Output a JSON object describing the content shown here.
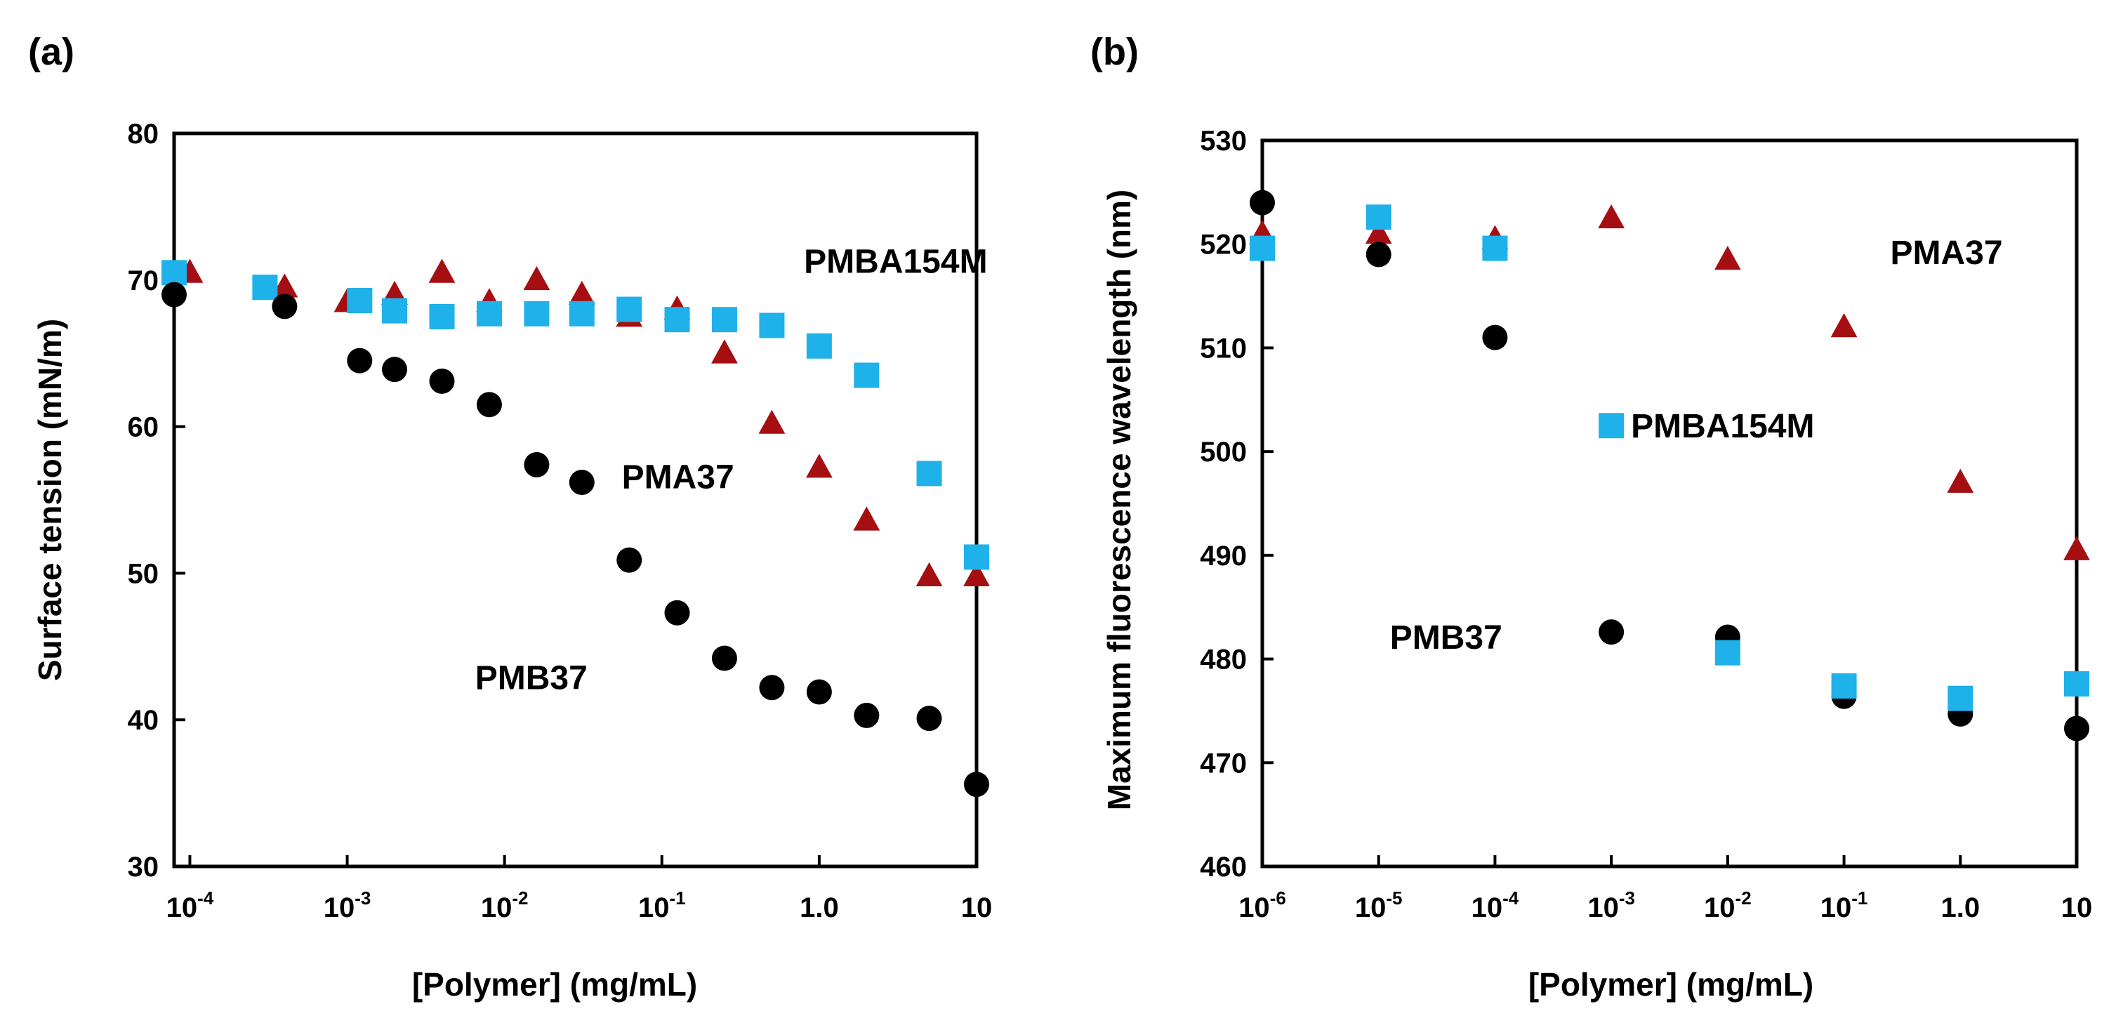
{
  "chart_data": [
    {
      "type": "scatter",
      "panel_label": "(a)",
      "xlabel": "[Polymer] (mg/mL)",
      "ylabel": "Surface tension (mN/m)",
      "xscale": "log",
      "xlim": [
        7.94e-05,
        10
      ],
      "ylim": [
        30,
        80
      ],
      "grid": false,
      "legend": "none",
      "yticks": [
        {
          "value": 30,
          "label": "30"
        },
        {
          "value": 40,
          "label": "40"
        },
        {
          "value": 50,
          "label": "50"
        },
        {
          "value": 60,
          "label": "60"
        },
        {
          "value": 70,
          "label": "70"
        },
        {
          "value": 80,
          "label": "80"
        }
      ],
      "xticks": [
        {
          "value": 0.0001,
          "base": "10",
          "exp": "-4"
        },
        {
          "value": 0.001,
          "base": "10",
          "exp": "-3"
        },
        {
          "value": 0.01,
          "base": "10",
          "exp": "-2"
        },
        {
          "value": 0.1,
          "base": "10",
          "exp": "-1"
        },
        {
          "value": 1,
          "base": "1.0",
          "exp": ""
        },
        {
          "value": 10,
          "base": "10",
          "exp": ""
        }
      ],
      "series": [
        {
          "name": "PMA37",
          "marker": "triangle",
          "color": "#A50F12",
          "x": [
            0.0001,
            0.0004,
            0.001,
            0.002,
            0.004,
            0.008,
            0.016,
            0.031,
            0.062,
            0.125,
            0.25,
            0.5,
            1.0,
            2.0,
            5.0,
            10.0
          ],
          "y": [
            70.5,
            69.5,
            68.5,
            69,
            70.5,
            68.5,
            70,
            69,
            67.5,
            68,
            65,
            60.2,
            57.2,
            53.6,
            49.8,
            49.8
          ]
        },
        {
          "name": "PMBA154M",
          "marker": "square",
          "color": "#1EB1EA",
          "x": [
            7.94e-05,
            0.0003,
            0.0012,
            0.002,
            0.004,
            0.008,
            0.016,
            0.031,
            0.062,
            0.125,
            0.25,
            0.5,
            1.0,
            2.0,
            5.0,
            10.0
          ],
          "y": [
            70.5,
            69.5,
            68.6,
            67.9,
            67.5,
            67.7,
            67.7,
            67.7,
            68.0,
            67.3,
            67.3,
            66.9,
            65.5,
            63.5,
            56.8,
            51.1
          ]
        },
        {
          "name": "PMB37",
          "marker": "circle",
          "color": "#000000",
          "x": [
            7.94e-05,
            0.0004,
            0.0012,
            0.002,
            0.004,
            0.008,
            0.016,
            0.031,
            0.062,
            0.125,
            0.25,
            0.5,
            1.0,
            2.0,
            5.0,
            10.0
          ],
          "y": [
            69.0,
            68.2,
            64.5,
            63.9,
            63.1,
            61.5,
            57.4,
            56.2,
            50.9,
            47.3,
            44.2,
            42.2,
            41.9,
            40.3,
            40.1,
            35.6
          ]
        }
      ],
      "annotations": [
        {
          "text": "PMBA154M",
          "at_x": 0.8,
          "at_y": 70.5
        },
        {
          "text": "PMA37",
          "at_x": 0.0556,
          "at_y": 55.8
        },
        {
          "text": "PMB37",
          "at_x": 0.0065,
          "at_y": 42.1
        }
      ]
    },
    {
      "type": "scatter",
      "panel_label": "(b)",
      "xlabel": "[Polymer] (mg/mL)",
      "ylabel": "Maximum fluorescence wavelength (nm)",
      "xscale": "log",
      "xlim": [
        1e-06,
        10
      ],
      "ylim": [
        460,
        530
      ],
      "grid": false,
      "legend": "none",
      "yticks": [
        {
          "value": 460,
          "label": "460"
        },
        {
          "value": 470,
          "label": "470"
        },
        {
          "value": 480,
          "label": "480"
        },
        {
          "value": 490,
          "label": "490"
        },
        {
          "value": 500,
          "label": "500"
        },
        {
          "value": 510,
          "label": "510"
        },
        {
          "value": 520,
          "label": "520"
        },
        {
          "value": 530,
          "label": "530"
        }
      ],
      "xticks": [
        {
          "value": 1e-06,
          "base": "10",
          "exp": "-6"
        },
        {
          "value": 1e-05,
          "base": "10",
          "exp": "-5"
        },
        {
          "value": 0.0001,
          "base": "10",
          "exp": "-4"
        },
        {
          "value": 0.001,
          "base": "10",
          "exp": "-3"
        },
        {
          "value": 0.01,
          "base": "10",
          "exp": "-2"
        },
        {
          "value": 0.1,
          "base": "10",
          "exp": "-1"
        },
        {
          "value": 1,
          "base": "1.0",
          "exp": ""
        },
        {
          "value": 10,
          "base": "10",
          "exp": ""
        }
      ],
      "series": [
        {
          "name": "PMA37",
          "marker": "triangle",
          "color": "#A50F12",
          "x": [
            1e-06,
            1e-05,
            0.0001,
            0.001,
            0.01,
            0.1,
            1,
            10
          ],
          "y": [
            521,
            521,
            520.5,
            522.5,
            518.5,
            512,
            497,
            490.5
          ]
        },
        {
          "name": "PMB37",
          "marker": "circle",
          "color": "#000000",
          "x": [
            1e-06,
            1e-05,
            0.0001,
            0.001,
            0.01,
            0.1,
            1,
            10
          ],
          "y": [
            524,
            519,
            511,
            482.6,
            482.1,
            476.4,
            474.7,
            473.3
          ]
        },
        {
          "name": "PMBA154M",
          "marker": "square",
          "color": "#1EB1EA",
          "x": [
            1e-06,
            1e-05,
            0.0001,
            0.01,
            0.1,
            1,
            10
          ],
          "y": [
            519.6,
            522.6,
            519.6,
            480.6,
            477.4,
            476.2,
            477.6
          ]
        }
      ],
      "annotations": [
        {
          "text": "PMA37",
          "at_x": 0.25,
          "at_y": 518.1
        },
        {
          "text": "PMBA154M",
          "marker": "square",
          "color": "#1EB1EA",
          "at_x": 0.001,
          "at_y": 502.5
        },
        {
          "text": "PMB37",
          "at_x": 1.25e-05,
          "at_y": 481
        }
      ]
    }
  ]
}
